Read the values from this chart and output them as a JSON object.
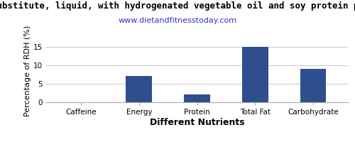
{
  "title_line1": "substitute, liquid, with hydrogenated vegetable oil and soy protein pe",
  "title_line2": "www.dietandfitnesstoday.com",
  "xlabel": "Different Nutrients",
  "ylabel": "Percentage of RDH (%)",
  "categories": [
    "Caffeine",
    "Energy",
    "Protein",
    "Total Fat",
    "Carbohydrate"
  ],
  "values": [
    0,
    7.1,
    2.1,
    15.0,
    9.0
  ],
  "bar_color": "#2e4f8e",
  "ylim": [
    0,
    17
  ],
  "yticks": [
    0,
    5,
    10,
    15
  ],
  "background_color": "#ffffff",
  "grid_color": "#cccccc",
  "title_fontsize": 9,
  "subtitle_fontsize": 8,
  "axis_label_fontsize": 8,
  "tick_fontsize": 7.5,
  "xlabel_fontsize": 9,
  "xlabel_fontweight": "bold"
}
